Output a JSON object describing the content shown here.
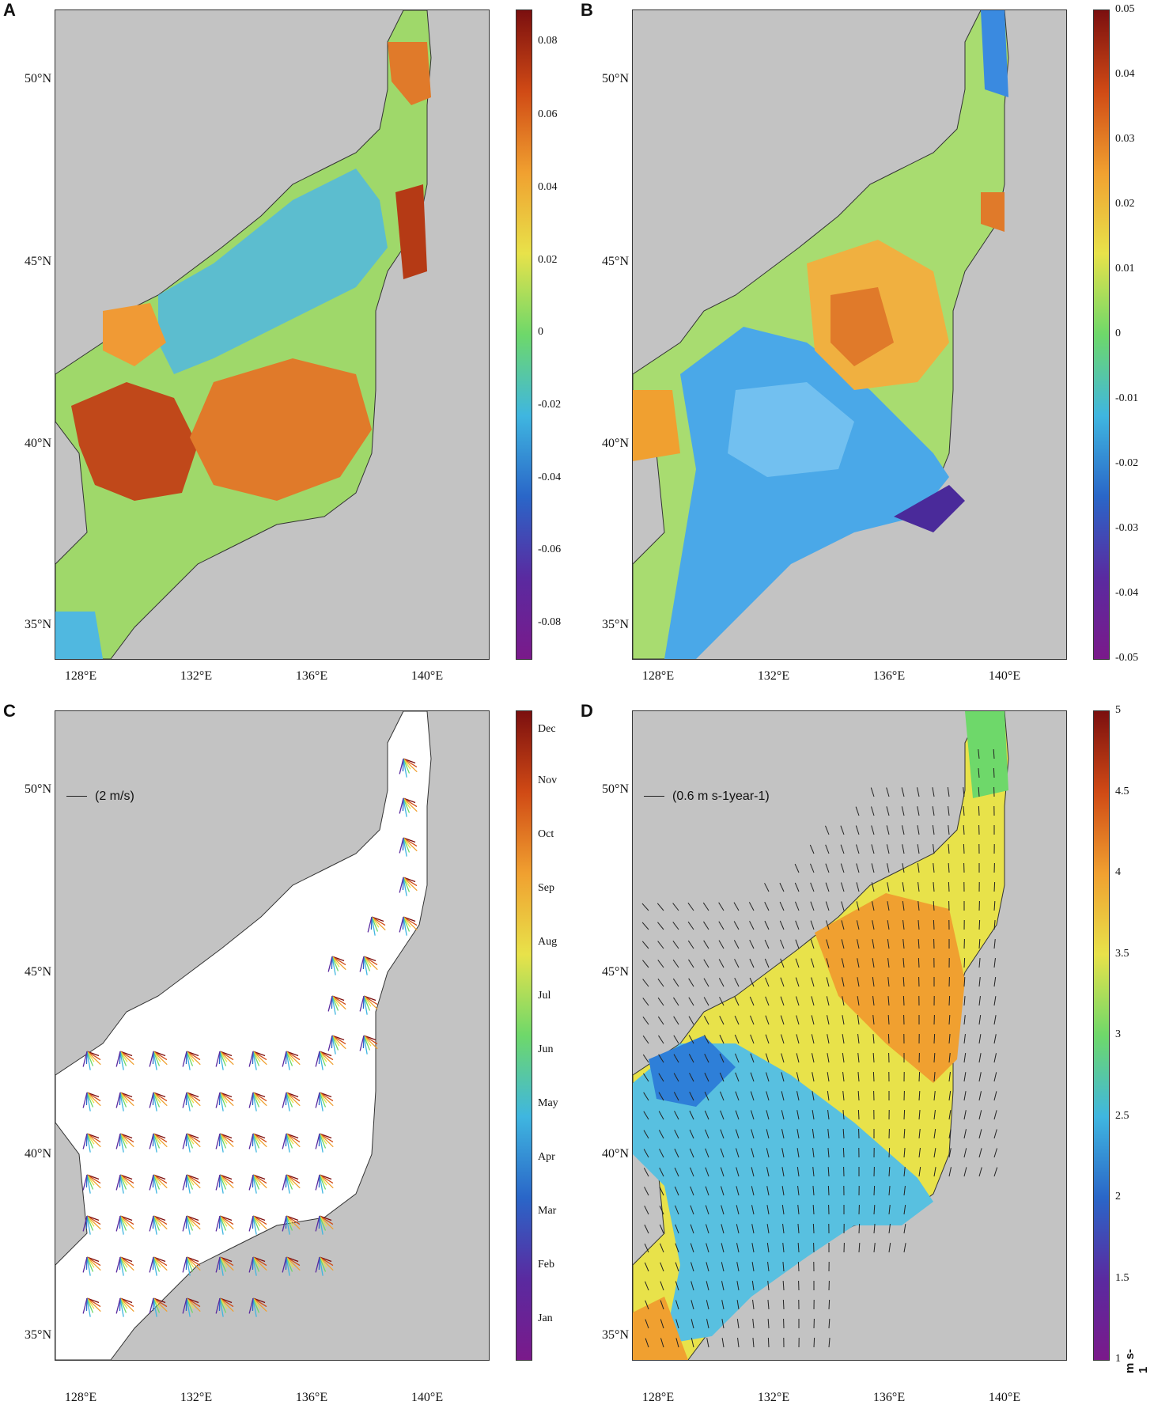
{
  "figure": {
    "panels": [
      {
        "id": "A",
        "letter": "A",
        "colorbar": {
          "ticks": [
            "0.08",
            "0.06",
            "0.04",
            "0.02",
            "0",
            "-0.02",
            "-0.04",
            "-0.06",
            "-0.08"
          ],
          "colors": [
            "#7b0f0f",
            "#d04a15",
            "#f0a030",
            "#e8e24a",
            "#6ed86a",
            "#3fb6e0",
            "#2a66c8",
            "#5a2aa0",
            "#7a1a8a"
          ]
        },
        "field_colors": {
          "background": "#c3c3c3",
          "sea_high": "#e87a2a",
          "sea_mid": "#9fd86a",
          "sea_low": "#50b8e0"
        }
      },
      {
        "id": "B",
        "letter": "B",
        "colorbar": {
          "ticks": [
            "0.05",
            "0.04",
            "0.03",
            "0.02",
            "0.01",
            "0",
            "-0.01",
            "-0.02",
            "-0.03",
            "-0.04",
            "-0.05"
          ],
          "colors": [
            "#7b0f0f",
            "#d04a15",
            "#f0a030",
            "#e8e24a",
            "#6ed86a",
            "#3fb6e0",
            "#2a66c8",
            "#5a2aa0",
            "#7a1a8a"
          ]
        },
        "field_colors": {
          "background": "#c3c3c3",
          "sea_high": "#f0b040",
          "sea_mid": "#a8dc70",
          "sea_low": "#4aa8e8"
        }
      },
      {
        "id": "C",
        "letter": "C",
        "scale_label": "(2 m/s)",
        "colorbar": {
          "ticks": [
            "Dec",
            "Nov",
            "Oct",
            "Sep",
            "Aug",
            "Jul",
            "Jun",
            "May",
            "Apr",
            "Mar",
            "Feb",
            "Jan"
          ],
          "colors": [
            "#7b0f0f",
            "#d04a15",
            "#f0a030",
            "#e8e24a",
            "#6ed86a",
            "#3fb6e0",
            "#2a66c8",
            "#5a2aa0",
            "#7a1a8a"
          ]
        },
        "field_colors": {
          "background": "#c3c3c3",
          "sea": "#ffffff"
        }
      },
      {
        "id": "D",
        "letter": "D",
        "scale_label": "(0.6 m s-1year-1)",
        "colorbar": {
          "ticks": [
            "5",
            "4.5",
            "4",
            "3.5",
            "3",
            "2.5",
            "2",
            "1.5",
            "1"
          ],
          "unit": "m s-1",
          "colors": [
            "#7b0f0f",
            "#d04a15",
            "#f0a030",
            "#e8e24a",
            "#6ed86a",
            "#3fb6e0",
            "#2a66c8",
            "#5a2aa0",
            "#7a1a8a"
          ]
        },
        "field_colors": {
          "background": "#c3c3c3",
          "sea_high": "#f0b040",
          "sea_mid": "#e8e24a",
          "sea_low": "#58c0e0"
        }
      }
    ],
    "lat_labels": [
      "50°N",
      "45°N",
      "40°N",
      "35°N"
    ],
    "lon_labels": [
      "128°E",
      "132°E",
      "136°E",
      "140°E"
    ]
  }
}
